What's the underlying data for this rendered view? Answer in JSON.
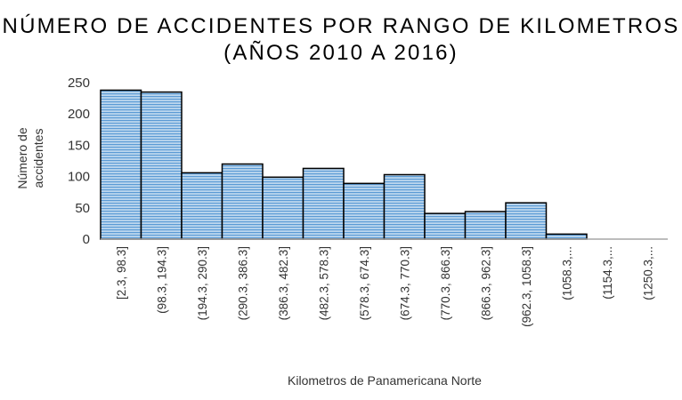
{
  "chart_data": {
    "type": "bar",
    "title_line1": "NÚMERO DE ACCIDENTES POR RANGO DE KILOMETROS",
    "title_line2": "(AÑOS 2010 A 2016)",
    "xlabel": "Kilometros de Panamericana Norte",
    "ylabel_line1": "Número de",
    "ylabel_line2": "accidentes",
    "ylim": [
      0,
      250
    ],
    "yticks": [
      0,
      50,
      100,
      150,
      200,
      250
    ],
    "grid": false,
    "categories": [
      "[2.3, 98.3]",
      "(98.3, 194.3]",
      "(194.3, 290.3]",
      "(290.3, 386.3]",
      "(386.3, 482.3]",
      "(482.3, 578.3]",
      "(578.3, 674.3]",
      "(674.3, 770.3]",
      "(770.3, 866.3]",
      "(866.3, 962.3]",
      "(962.3, 1058.3]",
      "(1058.3,...",
      "(1154.3,...",
      "(1250.3,..."
    ],
    "values": [
      238,
      235,
      106,
      120,
      99,
      113,
      89,
      103,
      41,
      44,
      58,
      8,
      0,
      0
    ],
    "colors": {
      "bar_fill": "#bdd7ee",
      "bar_stripe": "#5b9bd5",
      "bar_outline": "#000000",
      "axis": "#a6a6a6"
    }
  }
}
